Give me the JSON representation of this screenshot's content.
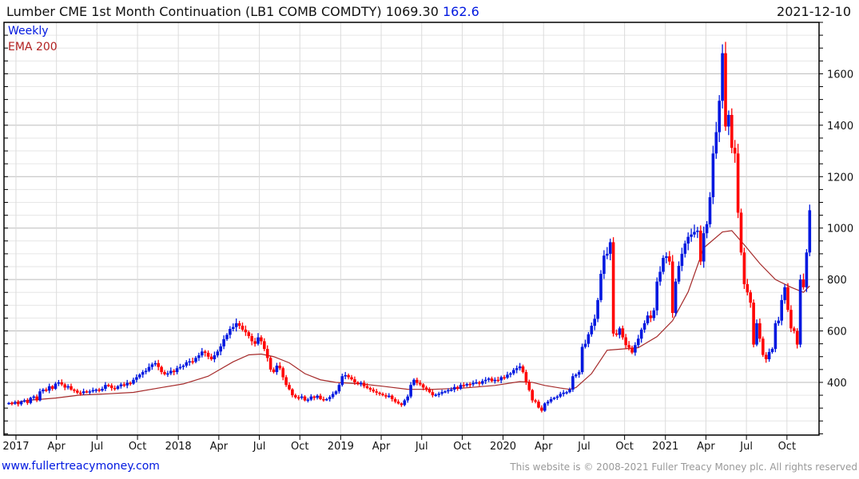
{
  "header": {
    "title": "Lumber CME 1st Month Continuation (LB1 COMB COMDTY) 1069.30",
    "change": "162.6",
    "date": "2021-12-10"
  },
  "legend": {
    "weekly": "Weekly",
    "ema": "EMA 200"
  },
  "footer": {
    "site": "www.fullertreacymoney.com",
    "copyright": "This website is © 2008-2021 Fuller Treacy Money plc. All rights reserved"
  },
  "colors": {
    "up": "#0018e0",
    "down": "#ff0000",
    "ema": "#a52a2a",
    "grid_major": "#bbbbbb",
    "grid_minor": "#e6e6e6"
  },
  "chart_data": {
    "type": "candlestick",
    "title": "Lumber CME 1st Month Continuation (LB1 COMB COMDTY)",
    "ylim": [
      195,
      1800
    ],
    "yticks": [
      400,
      600,
      800,
      1000,
      1200,
      1400,
      1600
    ],
    "xticks": [
      {
        "label": "2017",
        "week": 2.3
      },
      {
        "label": "Apr",
        "week": 15.3
      },
      {
        "label": "Jul",
        "week": 28.3
      },
      {
        "label": "Oct",
        "week": 41.3
      },
      {
        "label": "2018",
        "week": 54.4
      },
      {
        "label": "Apr",
        "week": 67.4
      },
      {
        "label": "Jul",
        "week": 80.4
      },
      {
        "label": "Oct",
        "week": 93.4
      },
      {
        "label": "2019",
        "week": 106.5
      },
      {
        "label": "Apr",
        "week": 119.5
      },
      {
        "label": "Jul",
        "week": 132.5
      },
      {
        "label": "Oct",
        "week": 145.5
      },
      {
        "label": "2020",
        "week": 158.6
      },
      {
        "label": "Apr",
        "week": 171.6
      },
      {
        "label": "Jul",
        "week": 184.6
      },
      {
        "label": "Oct",
        "week": 197.6
      },
      {
        "label": "2021",
        "week": 210.7
      },
      {
        "label": "Apr",
        "week": 223.7
      },
      {
        "label": "Jul",
        "week": 236.7
      },
      {
        "label": "Oct",
        "week": 249.7
      }
    ],
    "weekly_close": [
      320,
      318,
      322,
      315,
      325,
      330,
      320,
      340,
      345,
      330,
      365,
      372,
      368,
      385,
      375,
      395,
      400,
      392,
      380,
      385,
      372,
      368,
      360,
      358,
      365,
      362,
      365,
      370,
      372,
      368,
      375,
      390,
      388,
      378,
      375,
      385,
      392,
      388,
      398,
      395,
      410,
      420,
      430,
      440,
      445,
      460,
      470,
      475,
      460,
      440,
      432,
      435,
      445,
      440,
      455,
      460,
      465,
      478,
      482,
      480,
      495,
      505,
      520,
      515,
      500,
      490,
      505,
      520,
      540,
      568,
      585,
      608,
      615,
      630,
      620,
      605,
      595,
      580,
      560,
      550,
      575,
      560,
      530,
      495,
      450,
      440,
      465,
      455,
      420,
      390,
      373,
      350,
      342,
      340,
      345,
      330,
      333,
      345,
      340,
      348,
      335,
      333,
      335,
      343,
      355,
      365,
      390,
      424,
      428,
      420,
      412,
      400,
      395,
      398,
      385,
      378,
      372,
      365,
      360,
      355,
      350,
      345,
      348,
      335,
      325,
      318,
      312,
      330,
      345,
      390,
      410,
      398,
      392,
      380,
      372,
      362,
      350,
      352,
      356,
      362,
      365,
      370,
      372,
      382,
      375,
      390,
      388,
      394,
      392,
      398,
      400,
      395,
      405,
      410,
      415,
      405,
      410,
      408,
      420,
      418,
      430,
      435,
      448,
      455,
      462,
      440,
      400,
      370,
      330,
      325,
      302,
      290,
      318,
      325,
      335,
      340,
      345,
      355,
      360,
      362,
      372,
      424,
      430,
      440,
      538,
      550,
      587,
      620,
      647,
      720,
      822,
      893,
      900,
      945,
      590,
      585,
      610,
      575,
      545,
      535,
      516,
      545,
      570,
      605,
      630,
      660,
      650,
      680,
      792,
      830,
      884,
      890,
      870,
      670,
      792,
      853,
      900,
      940,
      966,
      975,
      985,
      990,
      870,
      980,
      1015,
      1120,
      1290,
      1373,
      1495,
      1680,
      1395,
      1440,
      1312,
      1290,
      1060,
      905,
      782,
      750,
      710,
      547,
      630,
      570,
      507,
      490,
      518,
      530,
      630,
      640,
      720,
      770,
      682,
      610,
      600,
      547,
      800,
      770,
      905,
      1069.3
    ],
    "ema200": [
      [
        0,
        317
      ],
      [
        6,
        330
      ],
      [
        15,
        339
      ],
      [
        23,
        351
      ],
      [
        31,
        355
      ],
      [
        40,
        361
      ],
      [
        49,
        380
      ],
      [
        56,
        394
      ],
      [
        64,
        424
      ],
      [
        72,
        480
      ],
      [
        77,
        507
      ],
      [
        81,
        510
      ],
      [
        85,
        500
      ],
      [
        90,
        476
      ],
      [
        95,
        434
      ],
      [
        100,
        410
      ],
      [
        105,
        400
      ],
      [
        113,
        394
      ],
      [
        120,
        385
      ],
      [
        128,
        373
      ],
      [
        136,
        373
      ],
      [
        146,
        378
      ],
      [
        156,
        388
      ],
      [
        164,
        403
      ],
      [
        168,
        400
      ],
      [
        172,
        388
      ],
      [
        177,
        378
      ],
      [
        180,
        373
      ],
      [
        182,
        380
      ],
      [
        187,
        434
      ],
      [
        192,
        525
      ],
      [
        197,
        530
      ],
      [
        202,
        535
      ],
      [
        208,
        578
      ],
      [
        213,
        640
      ],
      [
        218,
        752
      ],
      [
        223,
        923
      ],
      [
        229,
        985
      ],
      [
        232,
        990
      ],
      [
        236,
        935
      ],
      [
        241,
        862
      ],
      [
        246,
        800
      ],
      [
        251,
        770
      ],
      [
        255,
        750
      ],
      [
        257,
        775
      ]
    ]
  }
}
